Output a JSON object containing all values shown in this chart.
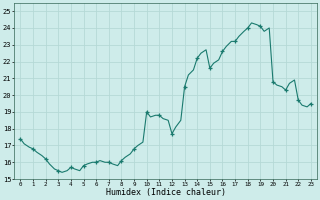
{
  "xlabel": "Humidex (Indice chaleur)",
  "xlim": [
    -0.5,
    23.5
  ],
  "ylim": [
    15,
    25.5
  ],
  "yticks": [
    15,
    16,
    17,
    18,
    19,
    20,
    21,
    22,
    23,
    24,
    25
  ],
  "xticks": [
    0,
    1,
    2,
    3,
    4,
    5,
    6,
    7,
    8,
    9,
    10,
    11,
    12,
    13,
    14,
    15,
    16,
    17,
    18,
    19,
    20,
    21,
    22,
    23
  ],
  "line_color": "#1a7a6e",
  "marker_color": "#1a7a6e",
  "bg_color": "#ceecea",
  "grid_color": "#b5d9d6",
  "data_x": [
    0,
    0.3,
    0.7,
    1.0,
    1.3,
    1.7,
    2.0,
    2.3,
    2.7,
    3.0,
    3.3,
    3.7,
    4.0,
    4.3,
    4.7,
    5.0,
    5.3,
    5.7,
    6.0,
    6.3,
    6.7,
    7.0,
    7.3,
    7.7,
    8.0,
    8.3,
    8.7,
    9.0,
    9.3,
    9.7,
    10.0,
    10.3,
    10.7,
    11.0,
    11.3,
    11.7,
    12.0,
    12.3,
    12.7,
    13.0,
    13.3,
    13.7,
    14.0,
    14.3,
    14.7,
    15.0,
    15.3,
    15.7,
    16.0,
    16.3,
    16.7,
    17.0,
    17.3,
    17.7,
    18.0,
    18.3,
    18.7,
    19.0,
    19.3,
    19.7,
    20.0,
    20.3,
    20.7,
    21.0,
    21.3,
    21.7,
    22.0,
    22.3,
    22.7,
    23.0
  ],
  "data_y": [
    17.4,
    17.1,
    16.9,
    16.8,
    16.6,
    16.4,
    16.2,
    15.9,
    15.6,
    15.5,
    15.4,
    15.5,
    15.7,
    15.6,
    15.5,
    15.8,
    15.9,
    16.0,
    16.0,
    16.1,
    16.0,
    16.0,
    15.9,
    15.8,
    16.1,
    16.3,
    16.5,
    16.8,
    17.0,
    17.2,
    19.0,
    18.7,
    18.8,
    18.8,
    18.6,
    18.5,
    17.7,
    18.1,
    18.5,
    20.5,
    21.2,
    21.5,
    22.2,
    22.5,
    22.7,
    21.6,
    21.9,
    22.1,
    22.6,
    22.9,
    23.2,
    23.2,
    23.5,
    23.8,
    24.0,
    24.3,
    24.2,
    24.1,
    23.8,
    24.0,
    20.8,
    20.6,
    20.5,
    20.3,
    20.7,
    20.9,
    19.7,
    19.4,
    19.3,
    19.5
  ],
  "marker_x": [
    0,
    1,
    2,
    3,
    4,
    5,
    6,
    7,
    8,
    9,
    10,
    11,
    12,
    13,
    14,
    15,
    16,
    17,
    18,
    19,
    20,
    21,
    22,
    23
  ],
  "marker_y": [
    17.4,
    16.8,
    16.2,
    15.5,
    15.7,
    15.8,
    16.0,
    16.0,
    16.1,
    16.8,
    19.0,
    18.8,
    17.7,
    20.5,
    22.2,
    21.6,
    22.6,
    23.2,
    24.0,
    24.1,
    20.8,
    20.3,
    19.7,
    19.5
  ]
}
